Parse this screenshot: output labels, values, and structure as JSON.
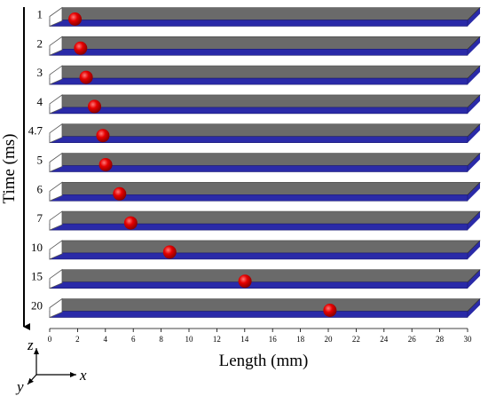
{
  "y_axis_label": "Time (ms)",
  "x_axis_label": "Length (mm)",
  "x_ticks": [
    "0",
    "2",
    "4",
    "6",
    "8",
    "10",
    "12",
    "14",
    "16",
    "18",
    "20",
    "22",
    "24",
    "26",
    "28",
    "30"
  ],
  "x_range_mm": [
    0,
    30
  ],
  "axes_triad": {
    "z": "z",
    "x": "x",
    "y": "y"
  },
  "colors": {
    "channel_top": "#6a6a6a",
    "channel_bottom": "#2a2aa8",
    "droplet": "#e00000",
    "arrow": "#000000"
  },
  "frames": [
    {
      "time_label": "1",
      "droplet_x_mm": 1.5
    },
    {
      "time_label": "2",
      "droplet_x_mm": 1.9
    },
    {
      "time_label": "3",
      "droplet_x_mm": 2.3
    },
    {
      "time_label": "4",
      "droplet_x_mm": 2.9
    },
    {
      "time_label": "4.7",
      "droplet_x_mm": 3.5
    },
    {
      "time_label": "5",
      "droplet_x_mm": 3.7
    },
    {
      "time_label": "6",
      "droplet_x_mm": 4.7
    },
    {
      "time_label": "7",
      "droplet_x_mm": 5.5
    },
    {
      "time_label": "10",
      "droplet_x_mm": 8.3
    },
    {
      "time_label": "15",
      "droplet_x_mm": 13.7
    },
    {
      "time_label": "20",
      "droplet_x_mm": 19.8
    }
  ]
}
